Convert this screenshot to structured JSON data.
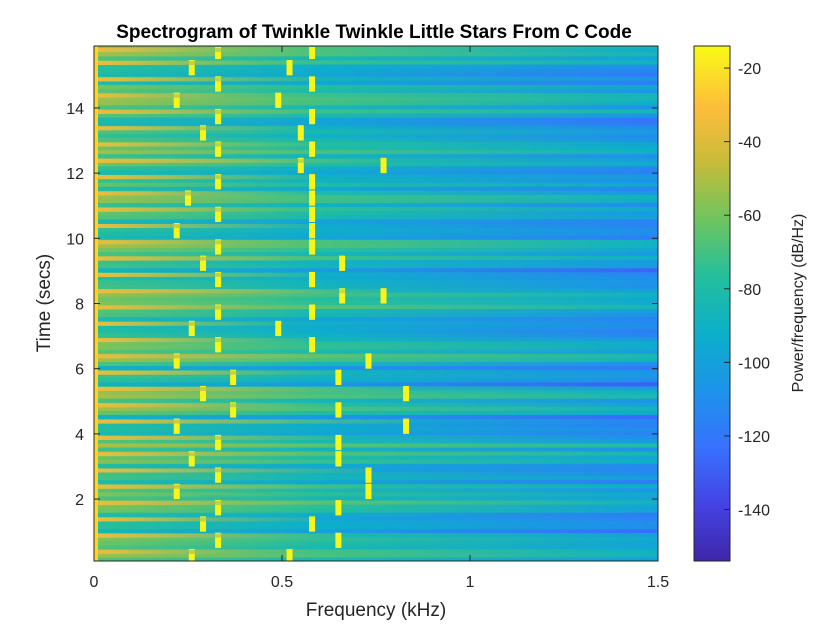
{
  "chart_data": {
    "type": "heatmap",
    "title": "Spectrogram of Twinkle Twinkle Little Stars From C Code",
    "xlabel": "Frequency (kHz)",
    "ylabel": "Time (secs)",
    "xlim": [
      0,
      1.5
    ],
    "ylim": [
      0.1,
      15.9
    ],
    "x_ticks": [
      0,
      0.5,
      1,
      1.5
    ],
    "x_tick_labels": [
      "0",
      "0.5",
      "1",
      "1.5"
    ],
    "y_ticks": [
      2,
      4,
      6,
      8,
      10,
      12,
      14
    ],
    "y_tick_labels": [
      "2",
      "4",
      "6",
      "8",
      "10",
      "12",
      "14"
    ],
    "colorbar": {
      "label": "Power/frequency (dB/Hz)",
      "range": [
        -154,
        -14
      ],
      "ticks": [
        -20,
        -40,
        -60,
        -80,
        -100,
        -120,
        -140
      ],
      "tick_labels": [
        "-20",
        "-40",
        "-60",
        "-80",
        "-100",
        "-120",
        "-140"
      ],
      "colormap": [
        "#3e26a8",
        "#4443e4",
        "#3871ff",
        "#1d93ea",
        "#0cafca",
        "#22be9f",
        "#6cc560",
        "#c4bc3a",
        "#fdbd3b",
        "#f9fb15"
      ]
    },
    "note_segments": [
      {
        "t0": 0.0,
        "t1": 0.5,
        "f": [
          0.26,
          0.52
        ]
      },
      {
        "t0": 0.5,
        "t1": 1.0,
        "f": [
          0.33,
          0.65
        ]
      },
      {
        "t0": 1.0,
        "t1": 1.5,
        "f": [
          0.29,
          0.58
        ]
      },
      {
        "t0": 1.5,
        "t1": 2.0,
        "f": [
          0.33,
          0.65
        ]
      },
      {
        "t0": 2.0,
        "t1": 2.5,
        "f": [
          0.22,
          0.73
        ]
      },
      {
        "t0": 2.5,
        "t1": 3.0,
        "f": [
          0.33,
          0.73
        ]
      },
      {
        "t0": 3.0,
        "t1": 3.5,
        "f": [
          0.26,
          0.65
        ]
      },
      {
        "t0": 3.5,
        "t1": 4.0,
        "f": [
          0.33,
          0.65
        ]
      },
      {
        "t0": 4.0,
        "t1": 4.5,
        "f": [
          0.22,
          0.83
        ]
      },
      {
        "t0": 4.5,
        "t1": 5.0,
        "f": [
          0.37,
          0.65
        ]
      },
      {
        "t0": 5.0,
        "t1": 5.5,
        "f": [
          0.29,
          0.83
        ]
      },
      {
        "t0": 5.5,
        "t1": 6.0,
        "f": [
          0.37,
          0.65
        ]
      },
      {
        "t0": 6.0,
        "t1": 6.5,
        "f": [
          0.22,
          0.73
        ]
      },
      {
        "t0": 6.5,
        "t1": 7.0,
        "f": [
          0.33,
          0.58
        ]
      },
      {
        "t0": 7.0,
        "t1": 7.5,
        "f": [
          0.26,
          0.49
        ]
      },
      {
        "t0": 7.5,
        "t1": 8.0,
        "f": [
          0.33,
          0.58
        ]
      },
      {
        "t0": 8.0,
        "t1": 8.5,
        "f": [
          0.66,
          0.77
        ]
      },
      {
        "t0": 8.5,
        "t1": 9.0,
        "f": [
          0.33,
          0.58
        ]
      },
      {
        "t0": 9.0,
        "t1": 9.5,
        "f": [
          0.29,
          0.66
        ]
      },
      {
        "t0": 9.5,
        "t1": 10.0,
        "f": [
          0.33,
          0.58
        ]
      },
      {
        "t0": 10.0,
        "t1": 10.5,
        "f": [
          0.22,
          0.58
        ]
      },
      {
        "t0": 10.5,
        "t1": 11.0,
        "f": [
          0.33,
          0.58
        ]
      },
      {
        "t0": 11.0,
        "t1": 11.5,
        "f": [
          0.25,
          0.58
        ]
      },
      {
        "t0": 11.5,
        "t1": 12.0,
        "f": [
          0.33,
          0.58
        ]
      },
      {
        "t0": 12.0,
        "t1": 12.5,
        "f": [
          0.55,
          0.77
        ]
      },
      {
        "t0": 12.5,
        "t1": 13.0,
        "f": [
          0.33,
          0.58
        ]
      },
      {
        "t0": 13.0,
        "t1": 13.5,
        "f": [
          0.29,
          0.55
        ]
      },
      {
        "t0": 13.5,
        "t1": 14.0,
        "f": [
          0.33,
          0.58
        ]
      },
      {
        "t0": 14.0,
        "t1": 14.5,
        "f": [
          0.22,
          0.49
        ]
      },
      {
        "t0": 14.5,
        "t1": 15.0,
        "f": [
          0.33,
          0.58
        ]
      },
      {
        "t0": 15.0,
        "t1": 15.5,
        "f": [
          0.26,
          0.52
        ]
      },
      {
        "t0": 15.5,
        "t1": 15.9,
        "f": [
          0.33,
          0.58
        ]
      }
    ]
  }
}
